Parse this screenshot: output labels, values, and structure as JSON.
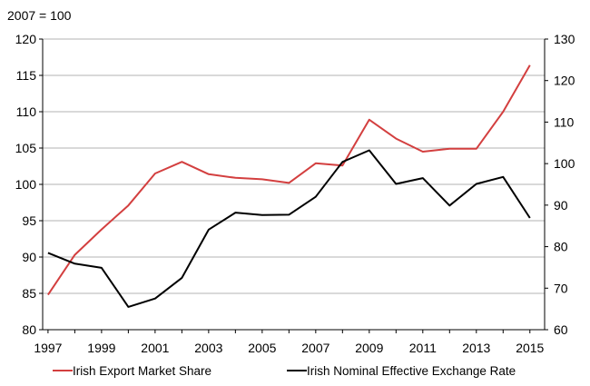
{
  "chart_data": {
    "type": "line",
    "unit_note": "2007 = 100",
    "x": [
      1997,
      1998,
      1999,
      2000,
      2001,
      2002,
      2003,
      2004,
      2005,
      2006,
      2007,
      2008,
      2009,
      2010,
      2011,
      2012,
      2013,
      2014,
      2015
    ],
    "x_tick_labels": [
      "1997",
      "1999",
      "2001",
      "2003",
      "2005",
      "2007",
      "2009",
      "2011",
      "2013",
      "2015"
    ],
    "x_ticks": [
      1997,
      1999,
      2001,
      2003,
      2005,
      2007,
      2009,
      2011,
      2013,
      2015
    ],
    "xlim": [
      1996.8,
      2015.55
    ],
    "y_left": {
      "ylim": [
        80,
        120
      ],
      "ticks": [
        80,
        85,
        90,
        95,
        100,
        105,
        110,
        115,
        120
      ],
      "tick_labels": [
        "80",
        "85",
        "90",
        "95",
        "100",
        "105",
        "110",
        "115",
        "120"
      ]
    },
    "y_right": {
      "ylim": [
        60,
        130
      ],
      "ticks": [
        60,
        70,
        80,
        90,
        100,
        110,
        120,
        130
      ],
      "tick_labels": [
        "60",
        "70",
        "80",
        "90",
        "100",
        "110",
        "120",
        "130"
      ]
    },
    "grid": "horizontal",
    "legend_position": "bottom",
    "series": [
      {
        "name": "Irish Export Market Share",
        "axis": "left",
        "color": "#d33f3f",
        "values": [
          84.8,
          90.3,
          93.8,
          97.1,
          101.5,
          103.1,
          101.4,
          100.9,
          100.7,
          100.2,
          102.9,
          102.6,
          108.9,
          106.3,
          104.5,
          104.9,
          104.9,
          110.0,
          116.4
        ]
      },
      {
        "name": "Irish Nominal Effective Exchange Rate",
        "axis": "right",
        "color": "#000000",
        "values": [
          78.5,
          75.9,
          74.9,
          65.5,
          67.5,
          72.5,
          84.1,
          88.2,
          87.6,
          87.7,
          92.0,
          100.4,
          103.2,
          95.1,
          96.5,
          89.9,
          95.1,
          96.8,
          86.9
        ]
      }
    ]
  }
}
